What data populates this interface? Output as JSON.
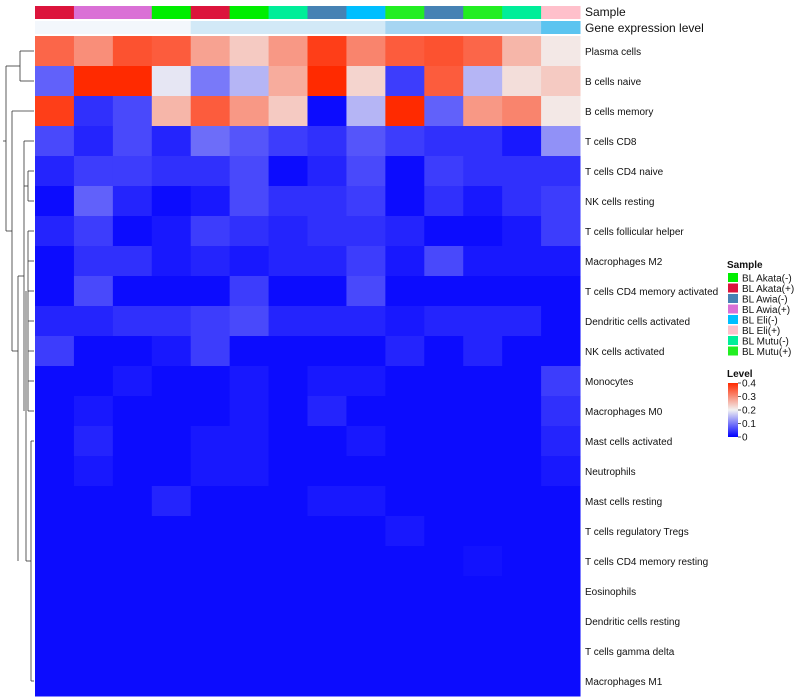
{
  "chart_data": {
    "type": "heatmap",
    "annotation_titles": [
      "Sample",
      "Gene expression level"
    ],
    "columns": [
      {
        "sample": "BL Akata(+)",
        "expr_level": "low"
      },
      {
        "sample": "BL Awia(+)",
        "expr_level": "low"
      },
      {
        "sample": "BL Awia(+)",
        "expr_level": "low"
      },
      {
        "sample": "BL Akata(-)",
        "expr_level": "low"
      },
      {
        "sample": "BL Akata(+)",
        "expr_level": "mid"
      },
      {
        "sample": "BL Akata(-)",
        "expr_level": "mid"
      },
      {
        "sample": "BL Mutu(-)",
        "expr_level": "mid"
      },
      {
        "sample": "BL Awia(-)",
        "expr_level": "mid"
      },
      {
        "sample": "BL Eli(-)",
        "expr_level": "mid"
      },
      {
        "sample": "BL Mutu(+)",
        "expr_level": "high"
      },
      {
        "sample": "BL Awia(-)",
        "expr_level": "high"
      },
      {
        "sample": "BL Mutu(+)",
        "expr_level": "high"
      },
      {
        "sample": "BL Mutu(-)",
        "expr_level": "high"
      },
      {
        "sample": "BL Eli(+)",
        "expr_level": "top"
      }
    ],
    "row_labels": [
      "Plasma cells",
      "B cells naive",
      "B cells memory",
      "T cells CD8",
      "T cells CD4 naive",
      "NK cells resting",
      "T cells follicular helper",
      "Macrophages M2",
      "T cells CD4 memory activated",
      "Dendritic cells activated",
      "NK cells activated",
      "Monocytes",
      "Macrophages M0",
      "Mast cells activated",
      "Neutrophils",
      "Mast cells resting",
      "T cells regulatory  Tregs",
      "T cells CD4 memory resting",
      "Eosinophils",
      "Dendritic cells resting",
      "T cells gamma delta",
      "Macrophages M1"
    ],
    "values": [
      [
        0.34,
        0.3,
        0.36,
        0.35,
        0.28,
        0.24,
        0.29,
        0.38,
        0.31,
        0.35,
        0.36,
        0.34,
        0.26,
        0.21
      ],
      [
        0.08,
        0.4,
        0.4,
        0.19,
        0.1,
        0.15,
        0.27,
        0.4,
        0.23,
        0.05,
        0.35,
        0.15,
        0.22,
        0.24
      ],
      [
        0.38,
        0.04,
        0.06,
        0.26,
        0.35,
        0.29,
        0.24,
        0.01,
        0.15,
        0.4,
        0.08,
        0.29,
        0.31,
        0.21
      ],
      [
        0.06,
        0.03,
        0.06,
        0.03,
        0.09,
        0.07,
        0.05,
        0.04,
        0.07,
        0.05,
        0.04,
        0.04,
        0.02,
        0.12
      ],
      [
        0.03,
        0.05,
        0.05,
        0.04,
        0.04,
        0.06,
        0.01,
        0.03,
        0.06,
        0.01,
        0.05,
        0.04,
        0.04,
        0.04
      ],
      [
        0.01,
        0.08,
        0.03,
        0.01,
        0.02,
        0.06,
        0.04,
        0.04,
        0.05,
        0.01,
        0.04,
        0.02,
        0.04,
        0.05
      ],
      [
        0.03,
        0.05,
        0.01,
        0.02,
        0.05,
        0.04,
        0.03,
        0.04,
        0.04,
        0.03,
        0.01,
        0.01,
        0.02,
        0.05
      ],
      [
        0.01,
        0.04,
        0.04,
        0.02,
        0.03,
        0.02,
        0.03,
        0.03,
        0.05,
        0.02,
        0.06,
        0.02,
        0.02,
        0.02
      ],
      [
        0.01,
        0.06,
        0.01,
        0.01,
        0.01,
        0.05,
        0.01,
        0.01,
        0.06,
        0.01,
        0.01,
        0.01,
        0.01,
        0.01
      ],
      [
        0.03,
        0.03,
        0.04,
        0.04,
        0.05,
        0.06,
        0.03,
        0.03,
        0.03,
        0.02,
        0.03,
        0.03,
        0.03,
        0.01
      ],
      [
        0.05,
        0.01,
        0.01,
        0.02,
        0.05,
        0.01,
        0.01,
        0.01,
        0.01,
        0.03,
        0.01,
        0.03,
        0.01,
        0.01
      ],
      [
        0.01,
        0.01,
        0.02,
        0.01,
        0.01,
        0.02,
        0.01,
        0.02,
        0.02,
        0.01,
        0.01,
        0.01,
        0.01,
        0.05
      ],
      [
        0.01,
        0.02,
        0.01,
        0.01,
        0.01,
        0.02,
        0.01,
        0.03,
        0.01,
        0.01,
        0.01,
        0.01,
        0.01,
        0.04
      ],
      [
        0.01,
        0.03,
        0.01,
        0.01,
        0.02,
        0.02,
        0.01,
        0.01,
        0.02,
        0.01,
        0.01,
        0.01,
        0.01,
        0.03
      ],
      [
        0.01,
        0.02,
        0.01,
        0.01,
        0.02,
        0.02,
        0.01,
        0.01,
        0.01,
        0.01,
        0.01,
        0.01,
        0.01,
        0.02
      ],
      [
        0.01,
        0.01,
        0.01,
        0.03,
        0.01,
        0.01,
        0.01,
        0.02,
        0.02,
        0.01,
        0.01,
        0.01,
        0.01,
        0.01
      ],
      [
        0.01,
        0.01,
        0.01,
        0.01,
        0.01,
        0.01,
        0.01,
        0.01,
        0.01,
        0.02,
        0.01,
        0.01,
        0.01,
        0.01
      ],
      [
        0.01,
        0.01,
        0.01,
        0.01,
        0.01,
        0.01,
        0.01,
        0.01,
        0.01,
        0.01,
        0.01,
        0.015,
        0.01,
        0.01
      ],
      [
        0.01,
        0.01,
        0.01,
        0.01,
        0.01,
        0.01,
        0.01,
        0.01,
        0.01,
        0.01,
        0.01,
        0.01,
        0.01,
        0.01
      ],
      [
        0.01,
        0.01,
        0.01,
        0.01,
        0.01,
        0.01,
        0.01,
        0.01,
        0.01,
        0.01,
        0.01,
        0.01,
        0.01,
        0.01
      ],
      [
        0.01,
        0.01,
        0.01,
        0.01,
        0.01,
        0.01,
        0.01,
        0.01,
        0.01,
        0.01,
        0.01,
        0.01,
        0.01,
        0.01
      ],
      [
        0.01,
        0.01,
        0.01,
        0.01,
        0.01,
        0.01,
        0.01,
        0.01,
        0.01,
        0.01,
        0.01,
        0.01,
        0.01,
        0.01
      ]
    ],
    "color_scale": {
      "min": 0,
      "max": 0.4,
      "low": "#0000ff",
      "mid": "#f2f2f2",
      "high": "#ff2a00"
    },
    "expr_level_colors": {
      "low": "#f3f7fc",
      "mid": "#d2e9f7",
      "high": "#a6d5f2",
      "top": "#5bc4f0"
    },
    "legends": {
      "sample": {
        "title": "Sample",
        "items": [
          {
            "label": "BL Akata(-)",
            "color": "#00ee00"
          },
          {
            "label": "BL Akata(+)",
            "color": "#dc143c"
          },
          {
            "label": "BL Awia(-)",
            "color": "#4682b4"
          },
          {
            "label": "BL Awia(+)",
            "color": "#da70d6"
          },
          {
            "label": "BL Eli(-)",
            "color": "#00bfff"
          },
          {
            "label": "BL Eli(+)",
            "color": "#ffc0cb"
          },
          {
            "label": "BL Mutu(-)",
            "color": "#00ee99"
          },
          {
            "label": "BL Mutu(+)",
            "color": "#22ee22"
          }
        ]
      },
      "level": {
        "title": "Level",
        "ticks": [
          "0.4",
          "0.3",
          "0.2",
          "0.1",
          "0"
        ]
      }
    }
  }
}
